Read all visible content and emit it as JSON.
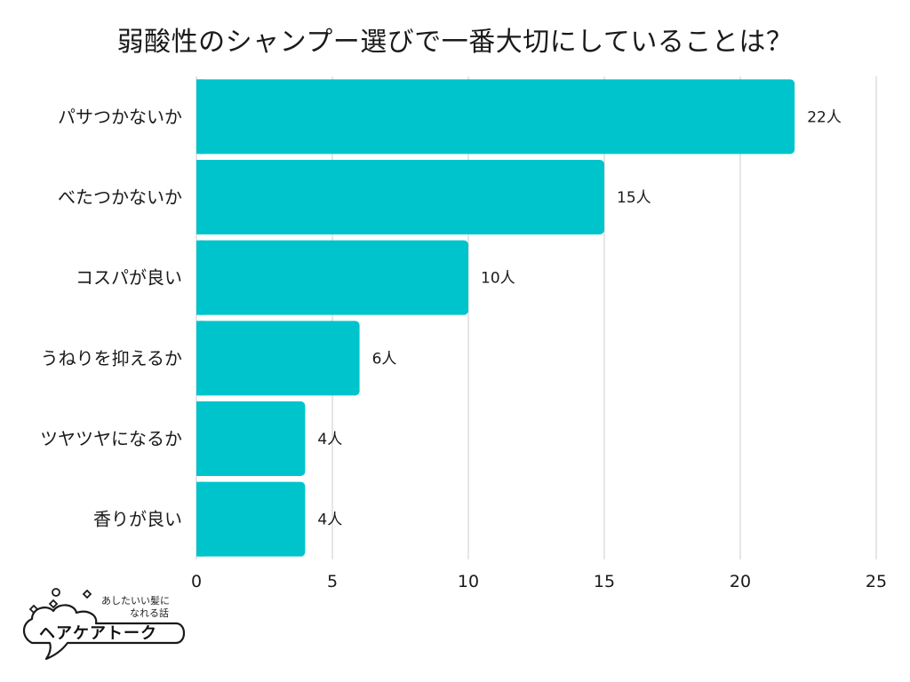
{
  "chart_data": {
    "type": "bar",
    "orientation": "horizontal",
    "title": "弱酸性のシャンプー選びで一番大切にしていることは？",
    "categories": [
      "パサつかないか",
      "べたつかないか",
      "コスパが良い",
      "うねりを抑えるか",
      "ツヤツヤになるか",
      "香りが良い"
    ],
    "values": [
      22,
      15,
      10,
      6,
      4,
      4
    ],
    "value_labels": [
      "22人",
      "15人",
      "10人",
      "6人",
      "4人",
      "4人"
    ],
    "xlim": [
      0,
      25
    ],
    "xticks": [
      "0",
      "5",
      "10",
      "15",
      "20",
      "25"
    ],
    "xtick_values": [
      0,
      5,
      10,
      15,
      20,
      25
    ],
    "grid": true,
    "bar_color": "#00c4cc",
    "grid_color": "#cccccc"
  },
  "logo": {
    "tagline_line1": "あしたいい髪に",
    "tagline_line2": "なれる話",
    "name": "ヘアケアトーク"
  }
}
